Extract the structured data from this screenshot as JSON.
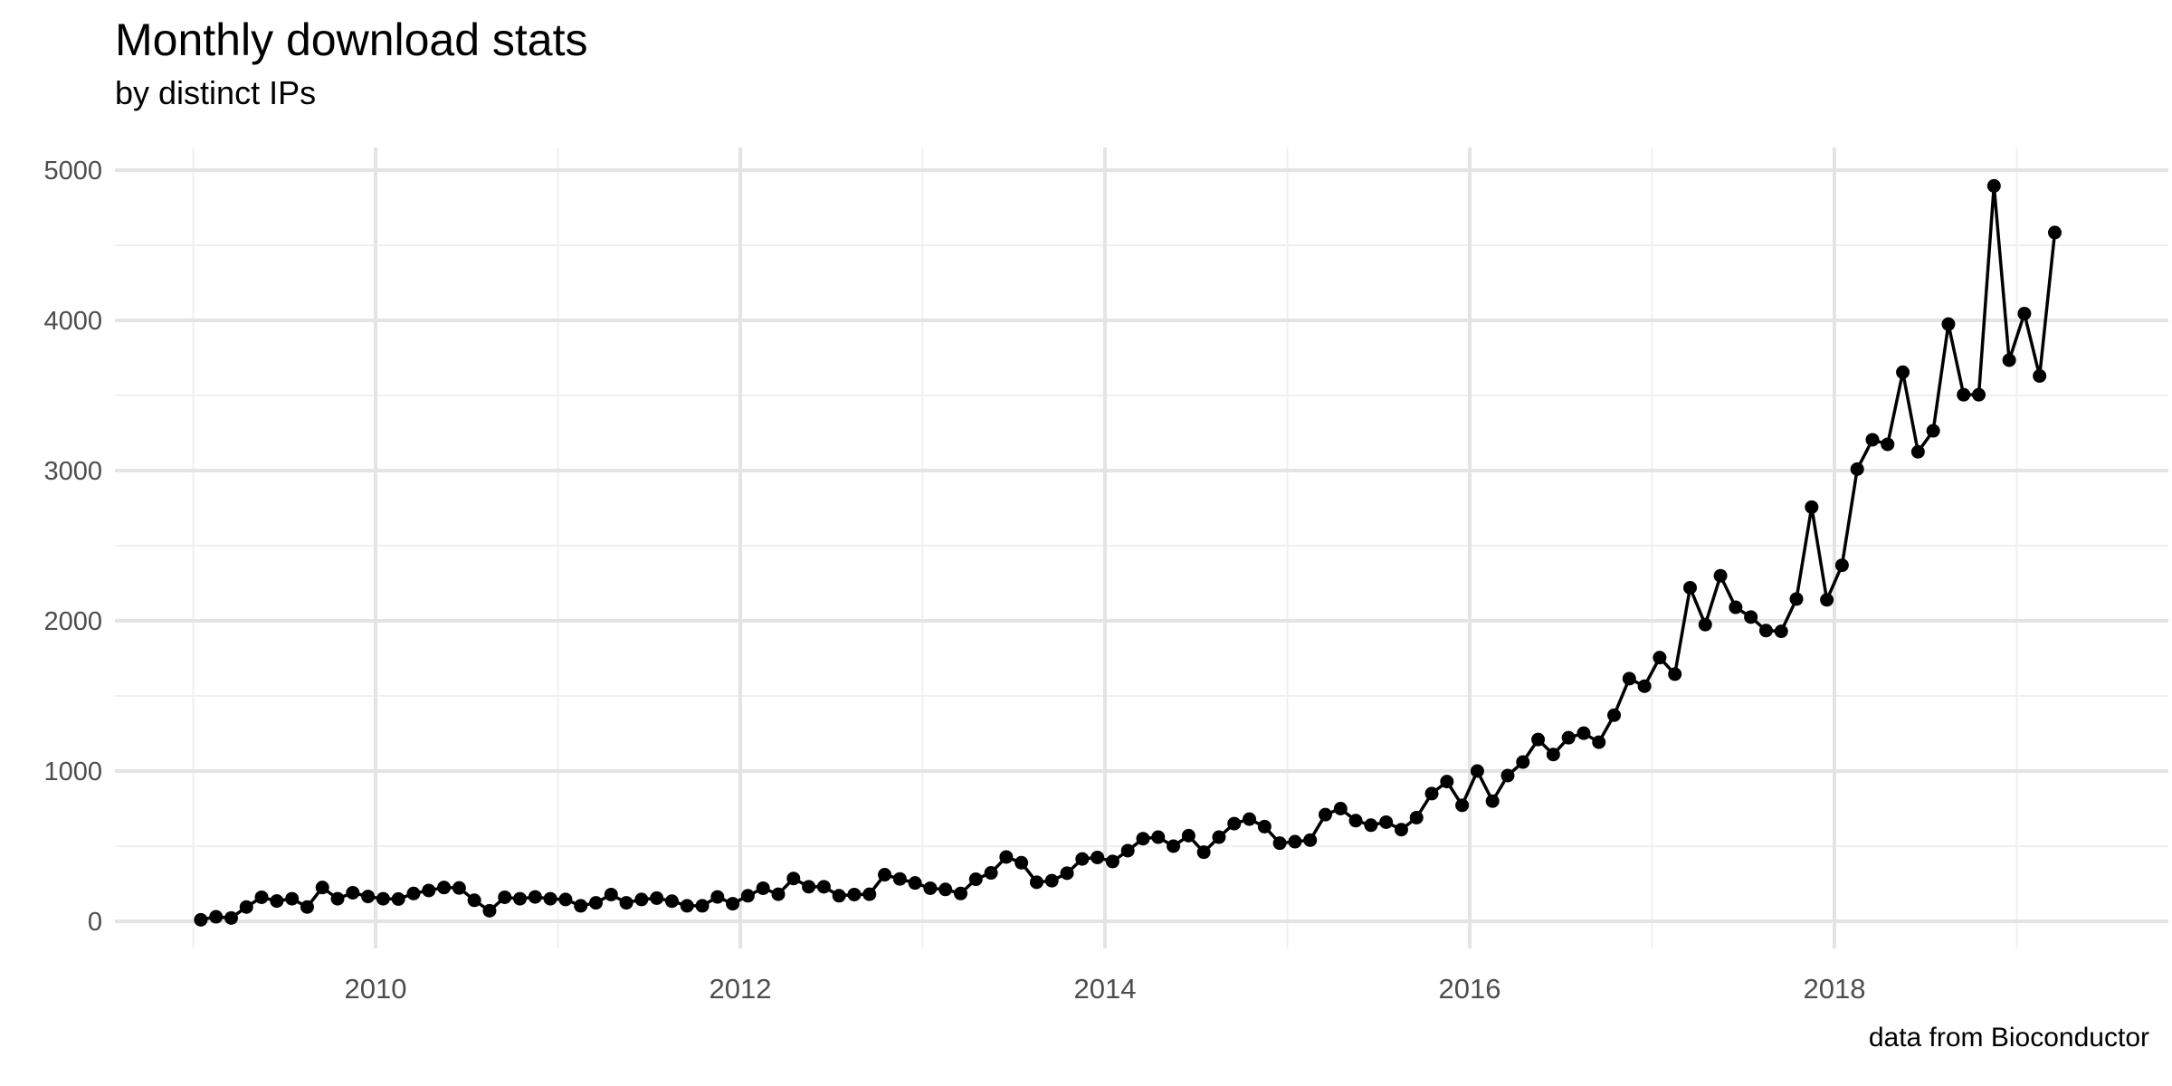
{
  "chart_data": {
    "type": "line",
    "title": "Monthly download stats",
    "subtitle": "by distinct IPs",
    "caption": "data from Bioconductor",
    "xlabel": "",
    "ylabel": "",
    "x": [
      "2009-01",
      "2009-02",
      "2009-03",
      "2009-04",
      "2009-05",
      "2009-06",
      "2009-07",
      "2009-08",
      "2009-09",
      "2009-10",
      "2009-11",
      "2009-12",
      "2010-01",
      "2010-02",
      "2010-03",
      "2010-04",
      "2010-05",
      "2010-06",
      "2010-07",
      "2010-08",
      "2010-09",
      "2010-10",
      "2010-11",
      "2010-12",
      "2011-01",
      "2011-02",
      "2011-03",
      "2011-04",
      "2011-05",
      "2011-06",
      "2011-07",
      "2011-08",
      "2011-09",
      "2011-10",
      "2011-11",
      "2011-12",
      "2012-01",
      "2012-02",
      "2012-03",
      "2012-04",
      "2012-05",
      "2012-06",
      "2012-07",
      "2012-08",
      "2012-09",
      "2012-10",
      "2012-11",
      "2012-12",
      "2013-01",
      "2013-02",
      "2013-03",
      "2013-04",
      "2013-05",
      "2013-06",
      "2013-07",
      "2013-08",
      "2013-09",
      "2013-10",
      "2013-11",
      "2013-12",
      "2014-01",
      "2014-02",
      "2014-03",
      "2014-04",
      "2014-05",
      "2014-06",
      "2014-07",
      "2014-08",
      "2014-09",
      "2014-10",
      "2014-11",
      "2014-12",
      "2015-01",
      "2015-02",
      "2015-03",
      "2015-04",
      "2015-05",
      "2015-06",
      "2015-07",
      "2015-08",
      "2015-09",
      "2015-10",
      "2015-11",
      "2015-12",
      "2016-01",
      "2016-02",
      "2016-03",
      "2016-04",
      "2016-05",
      "2016-06",
      "2016-07",
      "2016-08",
      "2016-09",
      "2016-10",
      "2016-11",
      "2016-12",
      "2017-01",
      "2017-02",
      "2017-03",
      "2017-04",
      "2017-05",
      "2017-06",
      "2017-07",
      "2017-08",
      "2017-09",
      "2017-10",
      "2017-11",
      "2017-12",
      "2018-01",
      "2018-02",
      "2018-03",
      "2018-04",
      "2018-05",
      "2018-06",
      "2018-07",
      "2018-08",
      "2018-09",
      "2018-10",
      "2018-11",
      "2018-12",
      "2019-01",
      "2019-02",
      "2019-03"
    ],
    "values": [
      10,
      30,
      22,
      95,
      160,
      135,
      150,
      95,
      225,
      150,
      190,
      165,
      150,
      148,
      185,
      205,
      225,
      222,
      140,
      70,
      160,
      150,
      162,
      150,
      145,
      103,
      123,
      178,
      123,
      145,
      154,
      134,
      103,
      103,
      162,
      117,
      170,
      220,
      180,
      285,
      230,
      230,
      170,
      178,
      180,
      310,
      282,
      255,
      220,
      212,
      185,
      280,
      322,
      428,
      390,
      260,
      270,
      320,
      415,
      425,
      398,
      470,
      550,
      560,
      500,
      570,
      460,
      560,
      650,
      680,
      630,
      520,
      530,
      540,
      710,
      750,
      670,
      640,
      660,
      610,
      690,
      850,
      930,
      772,
      1000,
      800,
      970,
      1060,
      1210,
      1110,
      1222,
      1252,
      1192,
      1372,
      1615,
      1565,
      1755,
      1645,
      2220,
      1975,
      2300,
      2090,
      2025,
      1935,
      1930,
      2145,
      2757,
      2140,
      2370,
      3010,
      3205,
      3175,
      3655,
      3125,
      3265,
      3975,
      3505,
      3505,
      4895,
      3735,
      4045,
      3630,
      4585
    ],
    "x_tick_labels": [
      "2010",
      "2012",
      "2014",
      "2016",
      "2018"
    ],
    "x_major_years": [
      2010,
      2012,
      2014,
      2016,
      2018
    ],
    "x_minor_years": [
      2009,
      2011,
      2013,
      2015,
      2017,
      2019
    ],
    "y_tick_labels": [
      "0",
      "1000",
      "2000",
      "3000",
      "4000",
      "5000"
    ],
    "y_major": [
      0,
      1000,
      2000,
      3000,
      4000,
      5000
    ],
    "y_minor": [
      500,
      1500,
      2500,
      3500,
      4500
    ],
    "ylim": [
      0,
      5000
    ],
    "xlim_years": [
      2008.87,
      2019.37
    ],
    "grid": true,
    "legend": false,
    "colors": {
      "background": "#ffffff",
      "line": "#000000",
      "point": "#000000",
      "grid_major": "#e4e4e4",
      "grid_minor": "#f0f0f0",
      "axis_text": "#4d4d4d",
      "title_text": "#000000"
    }
  }
}
